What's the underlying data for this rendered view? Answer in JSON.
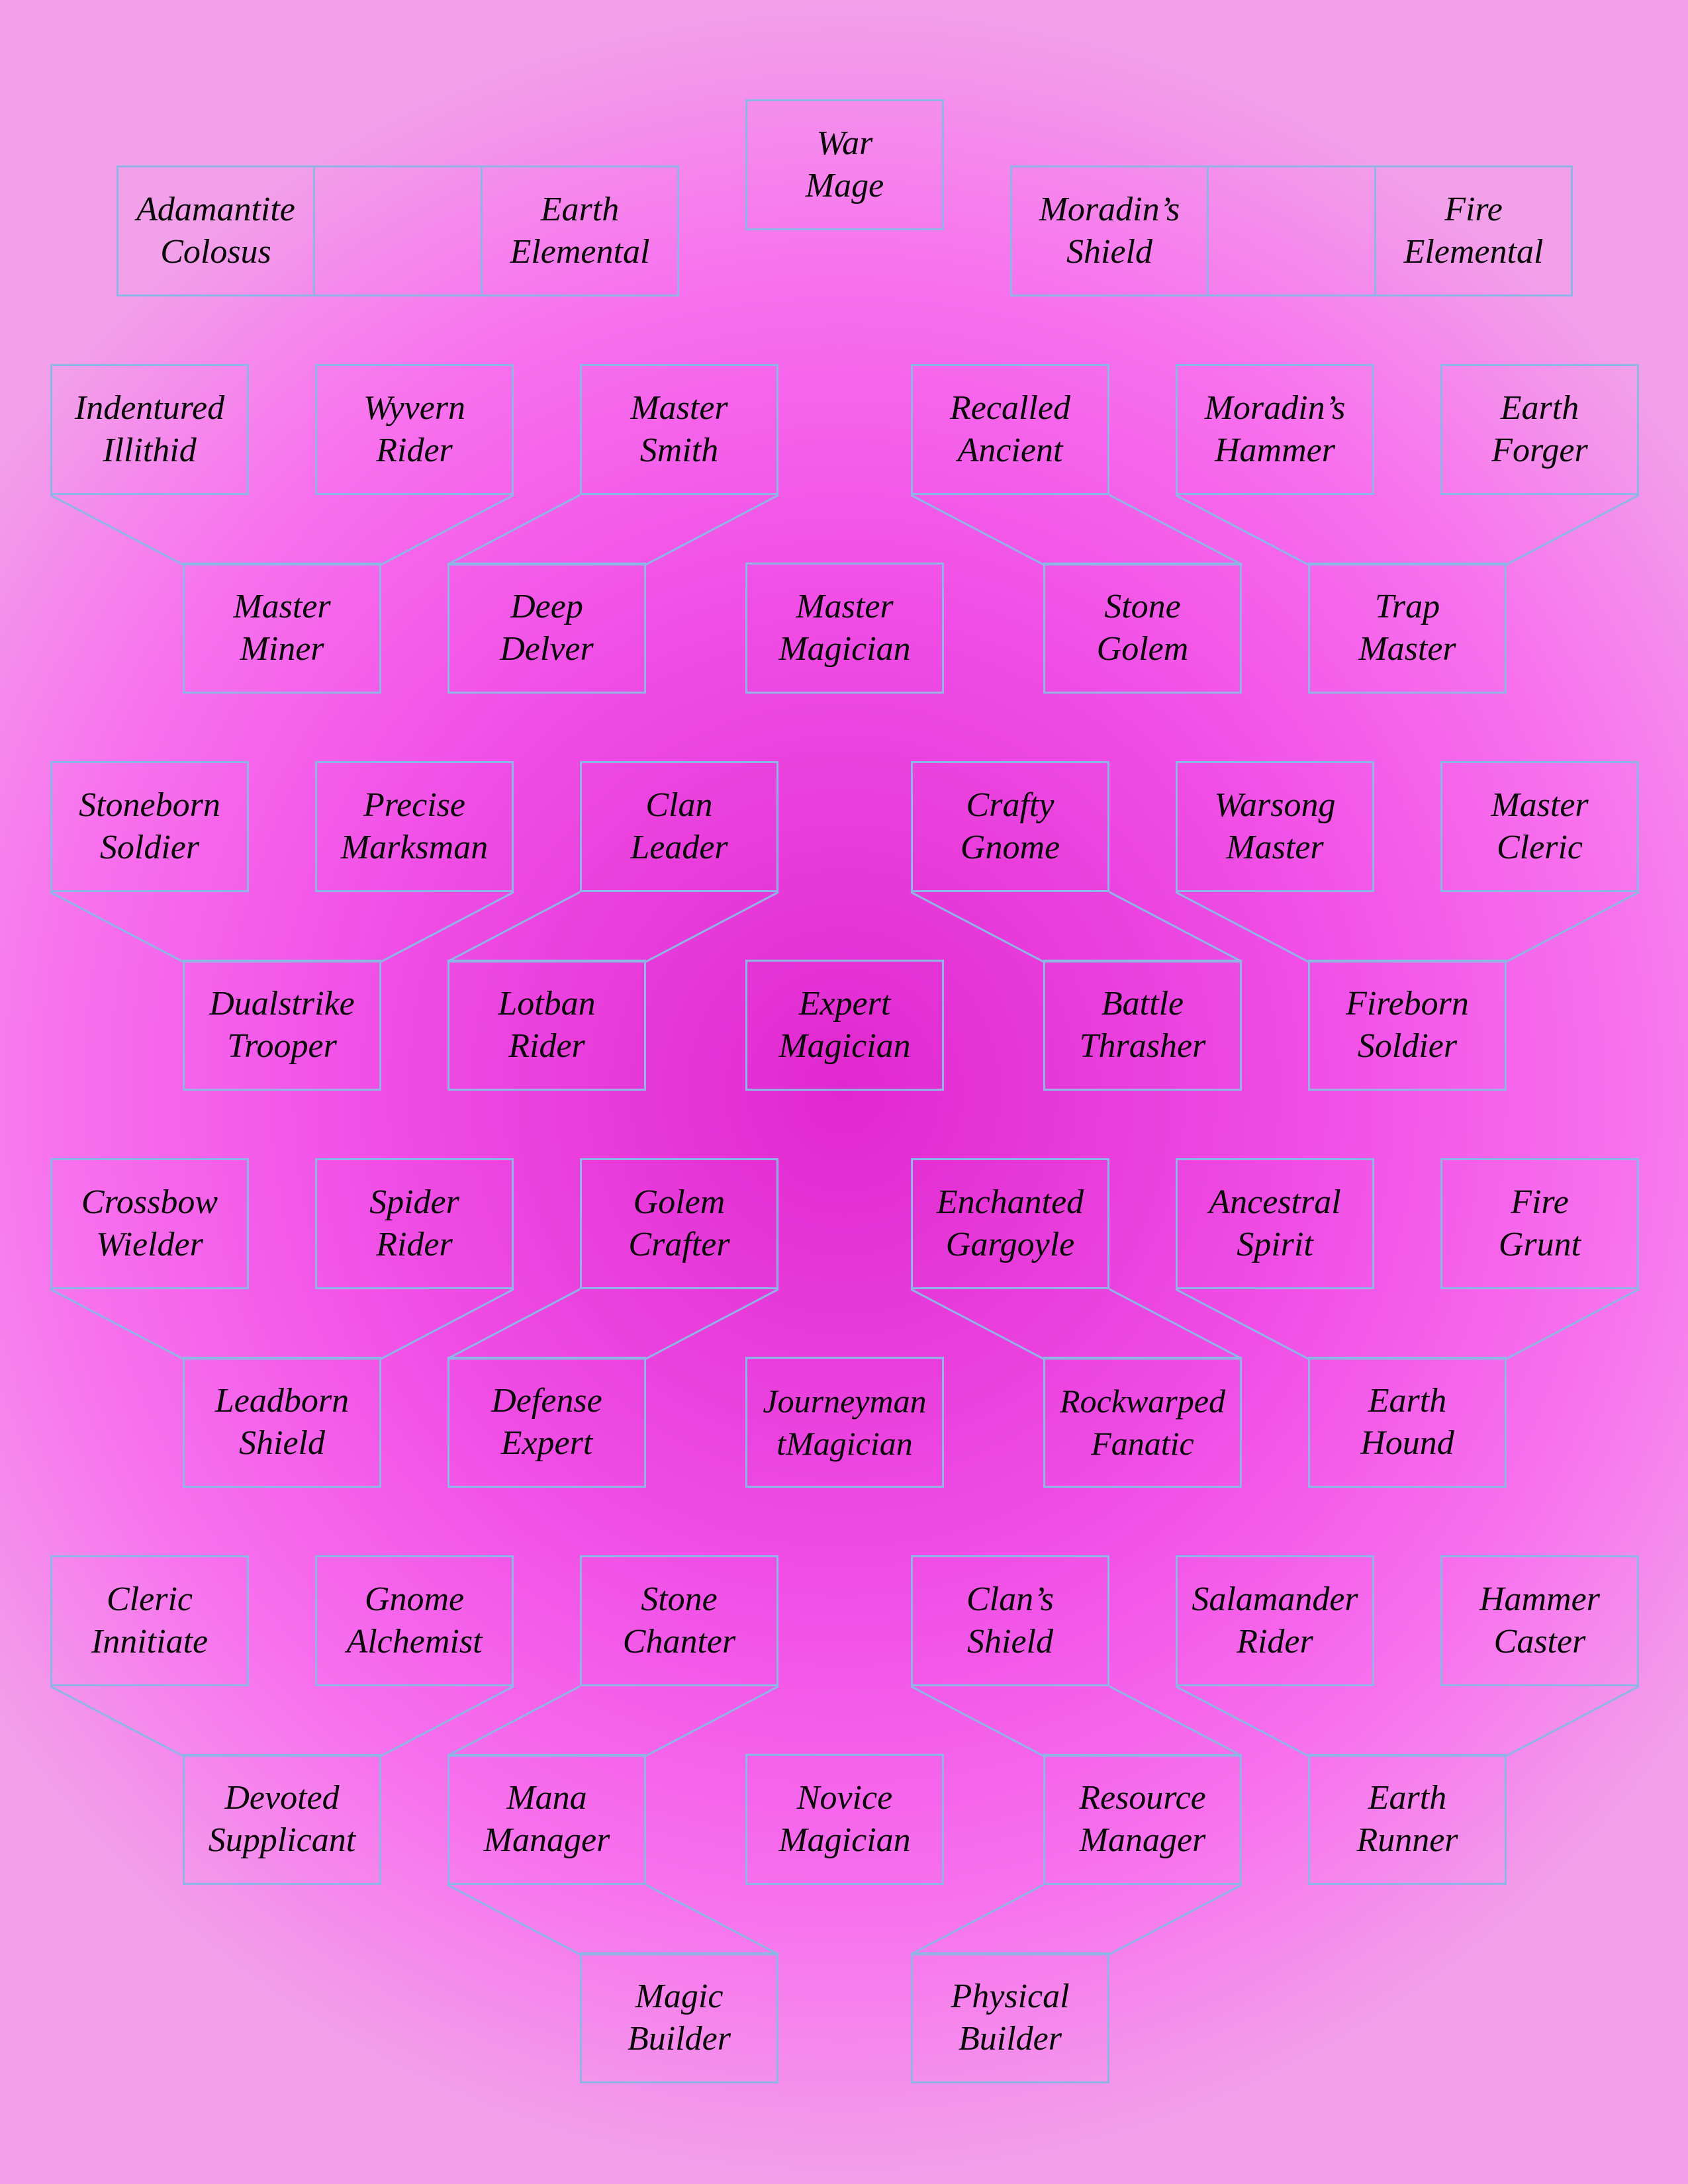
{
  "colors": {
    "background_center": "#e028cf",
    "background_edge": "#f2a0ea",
    "box_border": "#8fb5e6",
    "text": "#0a0a0a"
  },
  "nodes": {
    "war_mage": "War\nMage",
    "adamantite_colosus": "Adamantite\nColosus",
    "earth_elemental": "Earth\nElemental",
    "moradins_shield": "Moradin’s\nShield",
    "fire_elemental": "Fire\nElemental",
    "indentured_illithid": "Indentured\nIllithid",
    "wyvern_rider": "Wyvern\nRider",
    "master_smith": "Master\nSmith",
    "recalled_ancient": "Recalled\nAncient",
    "moradins_hammer": "Moradin’s\nHammer",
    "earth_forger": "Earth\nForger",
    "master_miner": "Master\nMiner",
    "deep_delver": "Deep\nDelver",
    "master_magician": "Master\nMagician",
    "stone_golem": "Stone\nGolem",
    "trap_master": "Trap\nMaster",
    "stoneborn_soldier": "Stoneborn\nSoldier",
    "precise_marksman": "Precise\nMarksman",
    "clan_leader": "Clan\nLeader",
    "crafty_gnome": "Crafty\nGnome",
    "warsong_master": "Warsong\nMaster",
    "master_cleric": "Master\nCleric",
    "dualstrike_trooper": "Dualstrike\nTrooper",
    "lotban_rider": "Lotban\nRider",
    "expert_magician": "Expert\nMagician",
    "battle_thrasher": "Battle\nThrasher",
    "fireborn_soldier": "Fireborn\nSoldier",
    "crossbow_wielder": "Crossbow\nWielder",
    "spider_rider": "Spider\nRider",
    "golem_crafter": "Golem\nCrafter",
    "enchanted_gargoyle": "Enchanted\nGargoyle",
    "ancestral_spirit": "Ancestral\nSpirit",
    "fire_grunt": "Fire\nGrunt",
    "leadborn_shield": "Leadborn\nShield",
    "defense_expert": "Defense\nExpert",
    "journeyman_magician": "Journeyman\ntMagician",
    "rockwarped_fanatic": "Rockwarped\nFanatic",
    "earth_hound": "Earth\nHound",
    "cleric_innitiate": "Cleric\nInnitiate",
    "gnome_alchemist": "Gnome\nAlchemist",
    "stone_chanter": "Stone\nChanter",
    "clans_shield": "Clan’s\nShield",
    "salamander_rider": "Salamander\nRider",
    "hammer_caster": "Hammer\nCaster",
    "devoted_supplicant": "Devoted\nSupplicant",
    "mana_manager": "Mana\nManager",
    "novice_magician": "Novice\nMagician",
    "resource_manager": "Resource\nManager",
    "earth_runner": "Earth\nRunner",
    "magic_builder": "Magic\nBuilder",
    "physical_builder": "Physical\nBuilder"
  }
}
